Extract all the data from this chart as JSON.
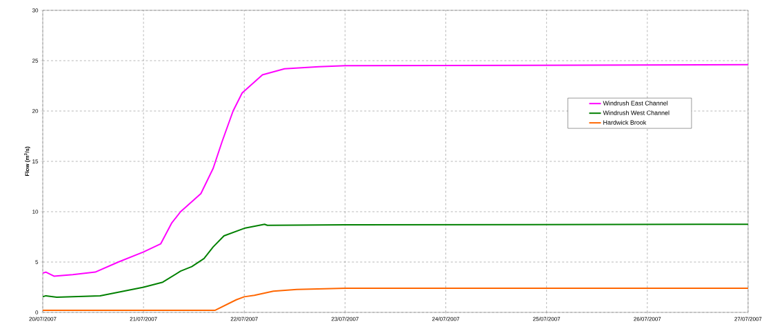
{
  "chart_data": {
    "type": "line",
    "ylabel": "**Flow (m$^{3}$/s)**",
    "xlim": [
      "2007-07-20",
      "2007-07-27"
    ],
    "xticks": [
      {
        "value": "2007-07-20",
        "label": "20/07/2007"
      },
      {
        "value": "2007-07-21",
        "label": "21/07/2007"
      },
      {
        "value": "2007-07-22",
        "label": "22/07/2007"
      },
      {
        "value": "2007-07-23",
        "label": "23/07/2007"
      },
      {
        "value": "2007-07-24",
        "label": "24/07/2007"
      },
      {
        "value": "2007-07-25",
        "label": "25/07/2007"
      },
      {
        "value": "2007-07-26",
        "label": "26/07/2007"
      },
      {
        "value": "2007-07-27",
        "label": "27/07/2007"
      }
    ],
    "ylim": [
      0,
      30
    ],
    "yticks": [
      0,
      5,
      10,
      15,
      20,
      25,
      30
    ],
    "grid": true,
    "legend": "right",
    "line_style": "solid",
    "marker": "none",
    "series": [
      {
        "name": "Windrush East Channel",
        "color": "#ff00ff",
        "x": [
          "2007-07-20T00:00",
          "2007-07-20T00:45",
          "2007-07-20T02:40",
          "2007-07-20T07:10",
          "2007-07-20T12:30",
          "2007-07-20T18:00",
          "2007-07-21T00:00",
          "2007-07-21T04:05",
          "2007-07-21T06:45",
          "2007-07-21T08:50",
          "2007-07-21T13:40",
          "2007-07-21T16:35",
          "2007-07-21T18:45",
          "2007-07-21T21:20",
          "2007-07-21T23:30",
          "2007-07-22T04:20",
          "2007-07-22T09:35",
          "2007-07-22T17:45",
          "2007-07-23T00:00",
          "2007-07-27T00:00"
        ],
        "values": [
          3.9,
          4.0,
          3.6,
          3.75,
          4.0,
          5.0,
          6.0,
          6.8,
          8.9,
          10.0,
          11.8,
          14.3,
          17.0,
          20.0,
          21.8,
          23.6,
          24.2,
          24.4,
          24.5,
          24.6
        ]
      },
      {
        "name": "Windrush West Channel",
        "color": "#008000",
        "x": [
          "2007-07-20T00:00",
          "2007-07-20T00:45",
          "2007-07-20T03:20",
          "2007-07-20T13:40",
          "2007-07-21T00:00",
          "2007-07-21T04:35",
          "2007-07-21T08:50",
          "2007-07-21T11:30",
          "2007-07-21T14:25",
          "2007-07-21T16:35",
          "2007-07-21T19:10",
          "2007-07-22T00:00",
          "2007-07-22T04:50",
          "2007-07-22T05:30",
          "2007-07-23T00:00",
          "2007-07-27T00:00"
        ],
        "values": [
          1.55,
          1.65,
          1.5,
          1.65,
          2.5,
          3.0,
          4.1,
          4.55,
          5.35,
          6.5,
          7.6,
          8.35,
          8.75,
          8.65,
          8.7,
          8.75
        ]
      },
      {
        "name": "Hardwick Brook",
        "color": "#ff6600",
        "x": [
          "2007-07-20T00:00",
          "2007-07-21T17:00",
          "2007-07-21T22:05",
          "2007-07-22T00:00",
          "2007-07-22T02:25",
          "2007-07-22T06:55",
          "2007-07-22T12:30",
          "2007-07-23T00:00",
          "2007-07-27T00:00"
        ],
        "values": [
          0.2,
          0.2,
          1.25,
          1.55,
          1.7,
          2.1,
          2.27,
          2.4,
          2.4
        ]
      }
    ]
  }
}
